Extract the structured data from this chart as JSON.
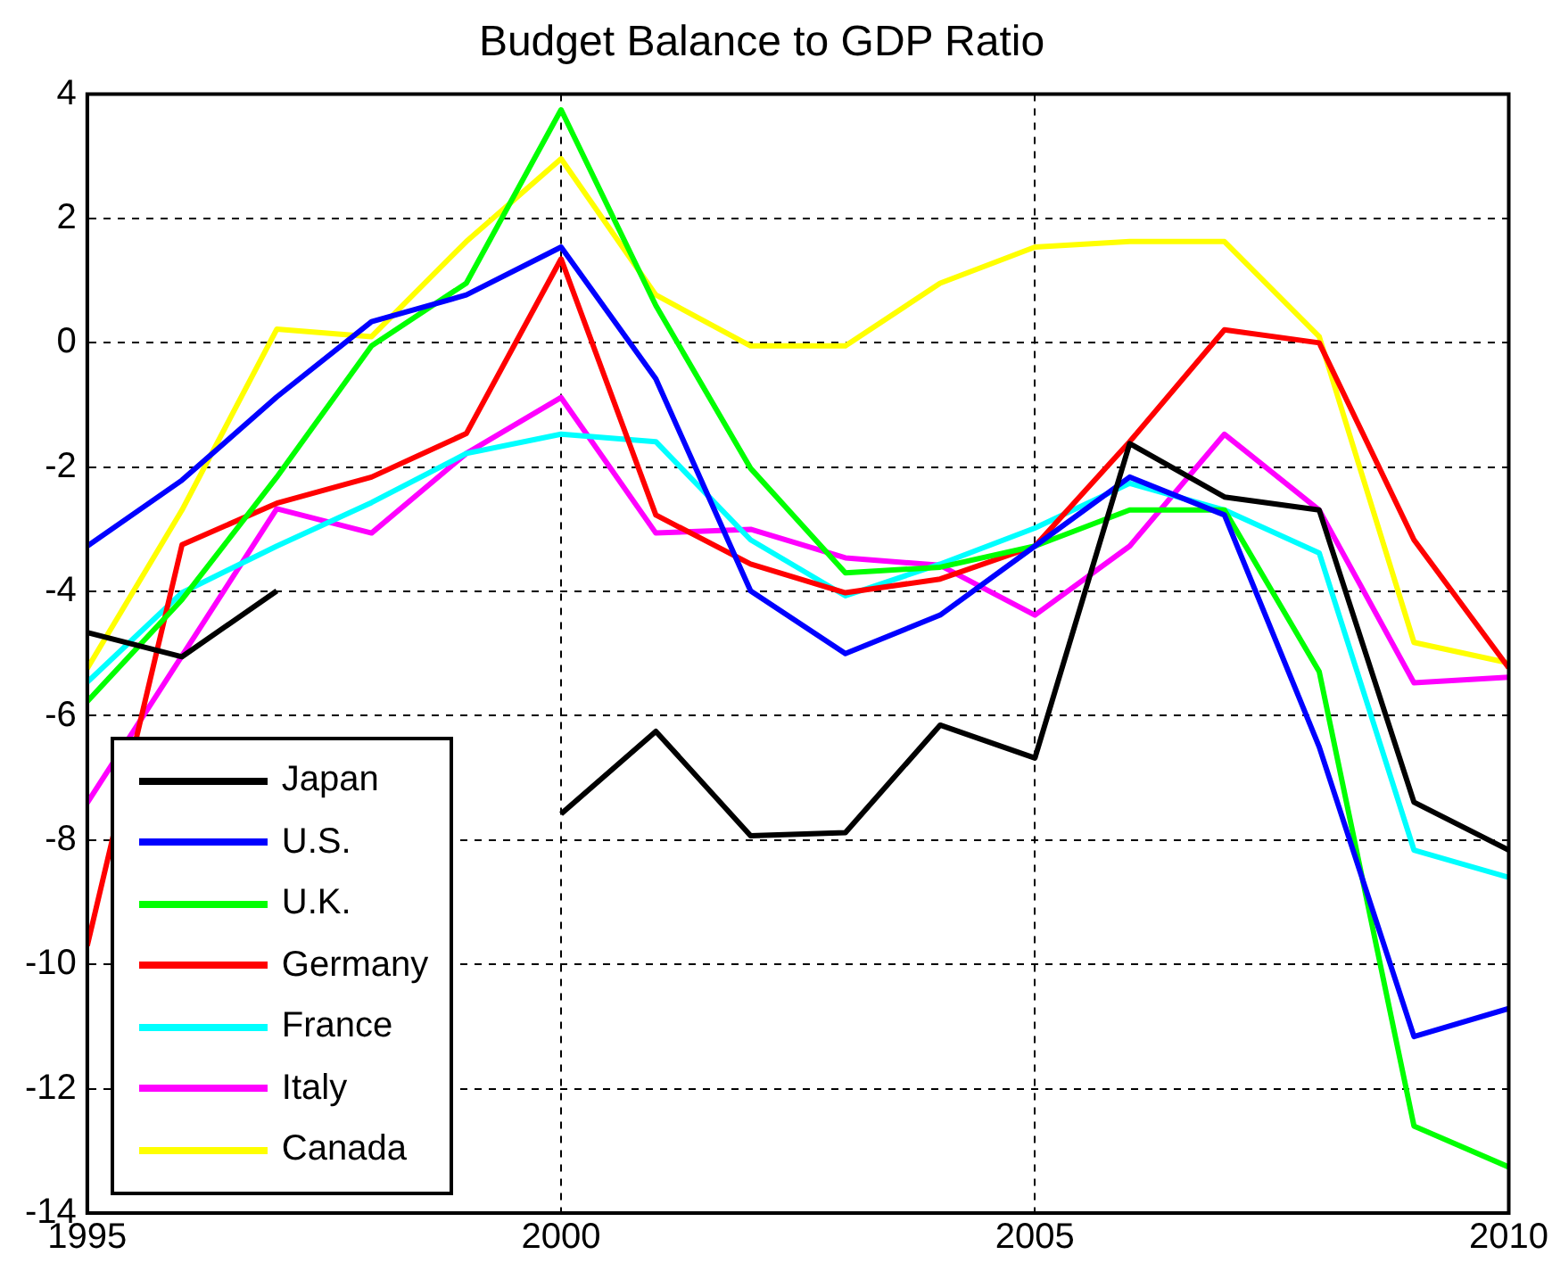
{
  "chart_data": {
    "type": "line",
    "title": "Budget Balance to GDP Ratio",
    "x": [
      1995,
      1996,
      1997,
      1998,
      1999,
      2000,
      2001,
      2002,
      2003,
      2004,
      2005,
      2006,
      2007,
      2008,
      2009,
      2010
    ],
    "series": [
      {
        "name": "Japan",
        "color": "#000000",
        "values": [
          -4.66,
          -5.05,
          -3.99,
          null,
          null,
          -7.58,
          -6.25,
          -7.93,
          -7.88,
          -6.15,
          -6.68,
          -1.62,
          -2.48,
          -2.69,
          -7.39,
          -8.16
        ]
      },
      {
        "name": "U.S.",
        "color": "#0000ff",
        "values": [
          -3.27,
          -2.21,
          -0.87,
          0.34,
          0.77,
          1.54,
          -0.58,
          -3.99,
          -5.0,
          -4.38,
          -3.27,
          -2.16,
          -2.77,
          -6.5,
          -11.16,
          -10.71
        ]
      },
      {
        "name": "U.K.",
        "color": "#00ff00",
        "values": [
          -5.77,
          -4.13,
          -2.16,
          -0.05,
          0.96,
          3.75,
          0.6,
          -2.02,
          -3.7,
          -3.61,
          -3.27,
          -2.69,
          -2.69,
          -5.29,
          -12.6,
          -13.26
        ]
      },
      {
        "name": "Germany",
        "color": "#ff0000",
        "values": [
          -9.7,
          -3.25,
          -2.58,
          -2.16,
          -1.46,
          1.35,
          -2.77,
          -3.56,
          -4.02,
          -3.8,
          -3.27,
          -1.59,
          0.21,
          0.0,
          -3.17,
          -5.23
        ]
      },
      {
        "name": "France",
        "color": "#00ffff",
        "values": [
          -5.46,
          -4.02,
          -3.27,
          -2.57,
          -1.78,
          -1.47,
          -1.59,
          -3.17,
          -4.07,
          -3.56,
          -2.98,
          -2.26,
          -2.69,
          -3.38,
          -8.16,
          -8.6
        ]
      },
      {
        "name": "Italy",
        "color": "#ff00ff",
        "values": [
          -7.4,
          null,
          -2.67,
          -3.06,
          -1.78,
          -0.88,
          -3.06,
          -3.0,
          -3.46,
          -3.58,
          -4.38,
          -3.27,
          -1.47,
          -2.69,
          -5.47,
          -5.38
        ]
      },
      {
        "name": "Canada",
        "color": "#ffff00",
        "values": [
          -5.24,
          -2.69,
          0.22,
          0.1,
          1.63,
          2.96,
          0.77,
          -0.05,
          -0.05,
          0.96,
          1.54,
          1.63,
          1.63,
          0.1,
          -4.82,
          -5.15
        ]
      }
    ],
    "xlim": [
      1995,
      2010
    ],
    "xticks": [
      1995,
      2000,
      2005,
      2010
    ],
    "ylim": [
      -14,
      4
    ],
    "yticks": [
      -14,
      -12,
      -10,
      -8,
      -6,
      -4,
      -2,
      0,
      2,
      4
    ],
    "grid": true,
    "legend": "bottom left",
    "marker": "none",
    "line_style": "solid"
  }
}
